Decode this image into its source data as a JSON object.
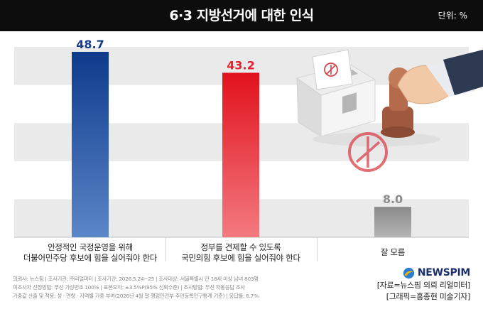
{
  "header": {
    "title": "6·3 지방선거에 대한 인식",
    "unit": "단위: %"
  },
  "chart_data": {
    "type": "bar",
    "categories": [
      [
        "안정적인 국정운영을 위해",
        "더불어민주당 후보에 힘을 실어줘야 한다"
      ],
      [
        "정부를 견제할 수 있도록",
        "국민의힘 후보에 힘을 실어줘야 한다"
      ],
      [
        "잘 모름"
      ]
    ],
    "values": [
      48.7,
      43.2,
      8.0
    ],
    "value_labels": [
      "48.7",
      "43.2",
      "8.0"
    ],
    "colors": [
      "#163d8c",
      "#e8202a",
      "#8c8c8c"
    ],
    "ylim": [
      0,
      50
    ],
    "grid": true,
    "title": "6·3 지방선거에 대한 인식",
    "xlabel": "",
    "ylabel": ""
  },
  "footer": {
    "meta_lines": [
      "의뢰사: 뉴스핌 | 조사기관: ㈜리얼미터 | 조사기간: 2026.5.24~25 | 조사대상: 서울특별시 만 18세 이상 남녀 803명",
      "피조사자 선정방법: 무선 가상번호 100% | 표본오차: ±3.5%P(95% 신뢰수준) | 조사방법: 무선 자동응답 조사",
      "가중값 산출 및 적용: 성 · 연령 · 지역별 가중 부여(2026년 4월 말 행정안전부 주민등록인구통계 기준) | 응답률: 6.7%"
    ],
    "logo": "NEWSPIM",
    "source": "[자료=뉴스핌 의뢰 리얼미터]",
    "graphic": "[그래픽=홍종현 미술기자]"
  }
}
